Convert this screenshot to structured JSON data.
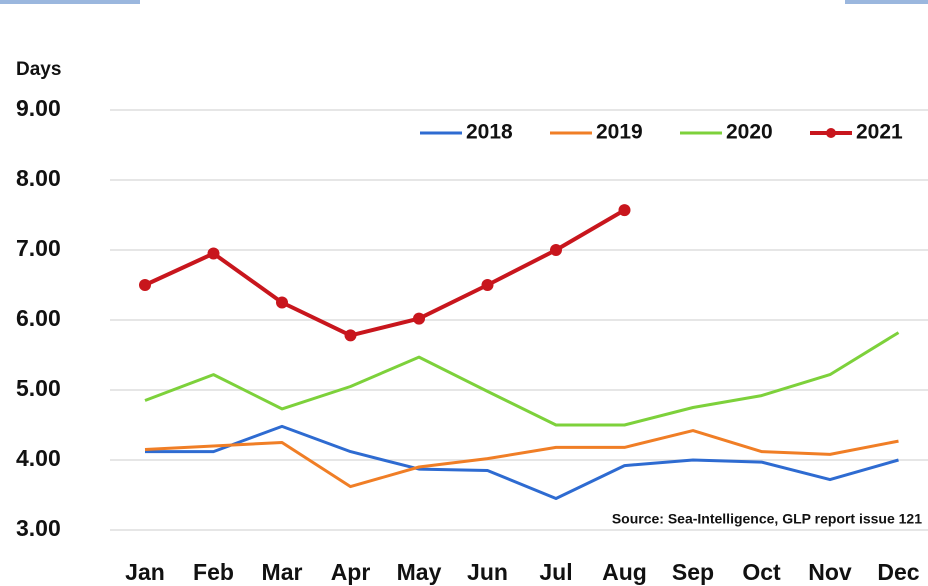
{
  "chart_data": {
    "type": "line",
    "y_label": "Days",
    "annotation": "Source: Sea-Intelligence, GLP report issue 121",
    "categories": [
      "Jan",
      "Feb",
      "Mar",
      "Apr",
      "May",
      "Jun",
      "Jul",
      "Aug",
      "Sep",
      "Oct",
      "Nov",
      "Dec"
    ],
    "series": [
      {
        "name": "2018",
        "color": "#2e6bd1",
        "values": [
          4.12,
          4.12,
          4.48,
          4.12,
          3.87,
          3.85,
          3.45,
          3.92,
          4.0,
          3.97,
          3.72,
          4.0
        ]
      },
      {
        "name": "2019",
        "color": "#f07e26",
        "values": [
          4.15,
          4.2,
          4.25,
          3.62,
          3.9,
          4.02,
          4.18,
          4.18,
          4.42,
          4.12,
          4.08,
          4.27
        ]
      },
      {
        "name": "2020",
        "color": "#7dd13b",
        "values": [
          4.85,
          5.22,
          4.73,
          5.05,
          5.47,
          4.98,
          4.5,
          4.5,
          4.75,
          4.92,
          5.22,
          5.82
        ]
      },
      {
        "name": "2021",
        "color": "#c8161d",
        "markers": true,
        "values": [
          6.5,
          6.95,
          6.25,
          5.78,
          6.02,
          6.5,
          7.0,
          7.57,
          null,
          null,
          null,
          null
        ]
      }
    ],
    "ylim": [
      3,
      9
    ],
    "yticks": [
      {
        "value": 3,
        "label": "3.00"
      },
      {
        "value": 4,
        "label": "4.00"
      },
      {
        "value": 5,
        "label": "5.00"
      },
      {
        "value": 6,
        "label": "6.00"
      },
      {
        "value": 7,
        "label": "7.00"
      },
      {
        "value": 8,
        "label": "8.00"
      },
      {
        "value": 9,
        "label": "9.00"
      }
    ],
    "grid": true,
    "legend": "top-right"
  }
}
